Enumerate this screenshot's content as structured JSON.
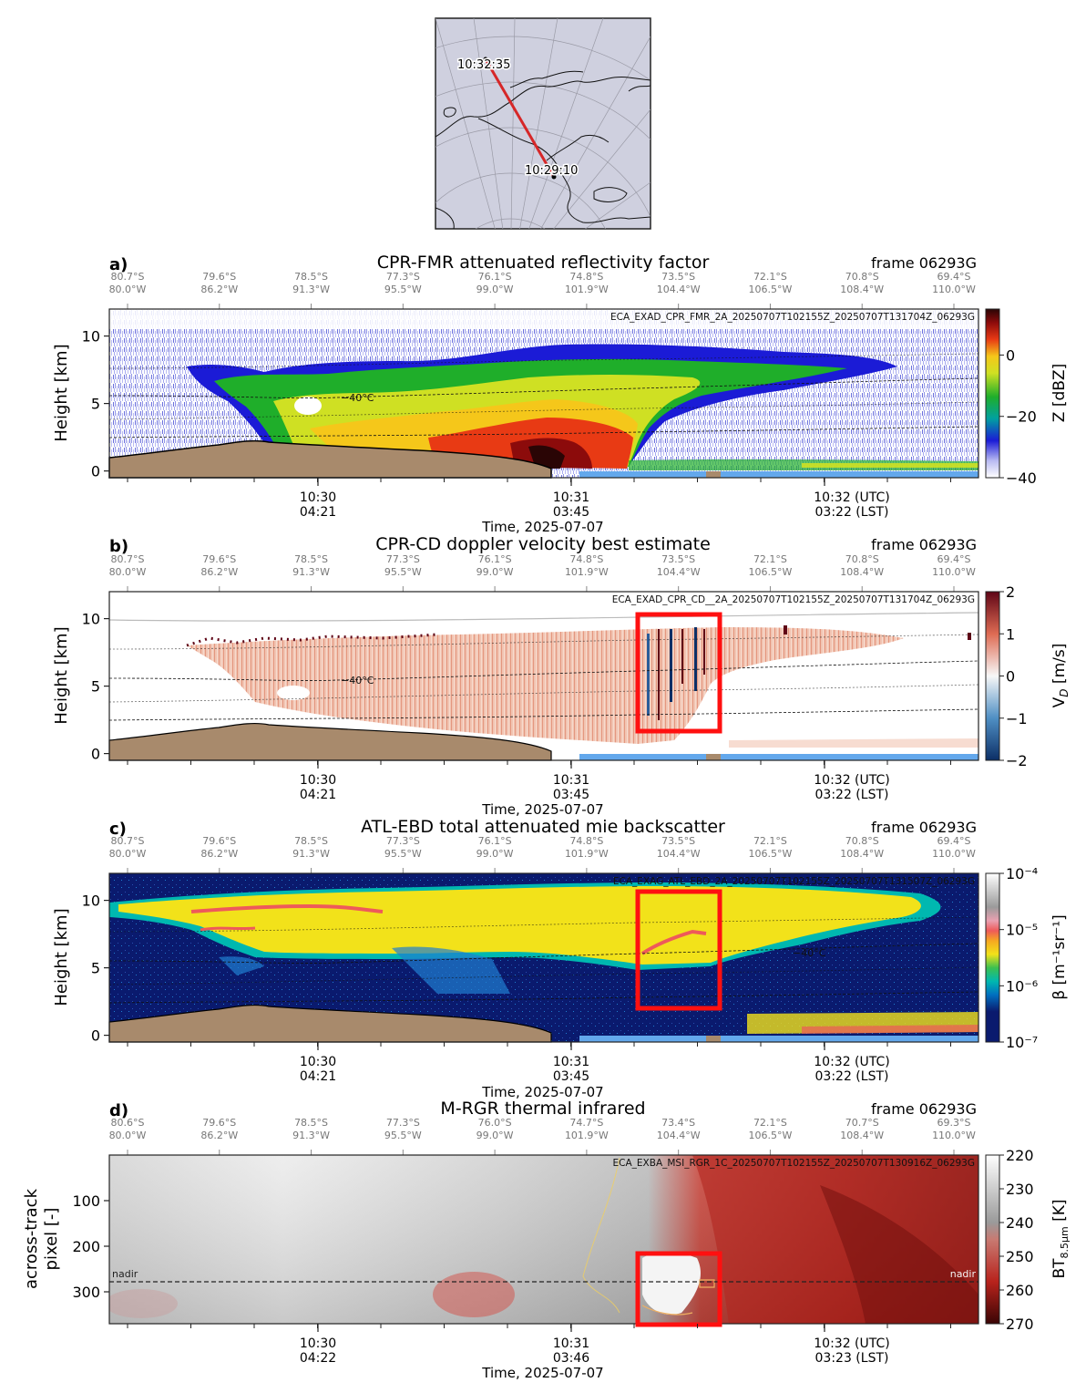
{
  "map": {
    "start_time": "10:29:10",
    "end_time": "10:32:35",
    "track_color": "#d62728"
  },
  "time_axis_label": "Time, 2025-07-07",
  "time_axis_label_d": "Time, 2025-07-07",
  "utc_ticks": [
    "10:30",
    "10:31",
    "10:32 (UTC)"
  ],
  "lst_ticks": [
    "04:21",
    "03:45",
    "03:22 (LST)"
  ],
  "lst_ticks_d": [
    "04:22",
    "03:46",
    "03:23 (LST)"
  ],
  "coord_ticks": [
    {
      "lat": "80.7°S",
      "lon": "80.0°W"
    },
    {
      "lat": "79.6°S",
      "lon": "86.2°W"
    },
    {
      "lat": "78.5°S",
      "lon": "91.3°W"
    },
    {
      "lat": "77.3°S",
      "lon": "95.5°W"
    },
    {
      "lat": "76.1°S",
      "lon": "99.0°W"
    },
    {
      "lat": "74.8°S",
      "lon": "101.9°W"
    },
    {
      "lat": "73.5°S",
      "lon": "104.4°W"
    },
    {
      "lat": "72.1°S",
      "lon": "106.5°W"
    },
    {
      "lat": "70.8°S",
      "lon": "108.4°W"
    },
    {
      "lat": "69.4°S",
      "lon": "110.0°W"
    }
  ],
  "coord_ticks_d": [
    {
      "lat": "80.6°S",
      "lon": "80.0°W"
    },
    {
      "lat": "79.6°S",
      "lon": "86.2°W"
    },
    {
      "lat": "78.5°S",
      "lon": "91.3°W"
    },
    {
      "lat": "77.3°S",
      "lon": "95.5°W"
    },
    {
      "lat": "76.0°S",
      "lon": "99.0°W"
    },
    {
      "lat": "74.7°S",
      "lon": "101.9°W"
    },
    {
      "lat": "73.4°S",
      "lon": "104.4°W"
    },
    {
      "lat": "72.1°S",
      "lon": "106.5°W"
    },
    {
      "lat": "70.7°S",
      "lon": "108.4°W"
    },
    {
      "lat": "69.3°S",
      "lon": "110.0°W"
    }
  ],
  "chart_data": [
    {
      "panel": "a)",
      "type": "heatmap",
      "title": "CPR-FMR attenuated reflectivity factor",
      "frame": "frame 06293G",
      "product": "ECA_EXAD_CPR_FMR_2A_20250707T102155Z_20250707T131704Z_06293G",
      "ylabel": "Height [km]",
      "yticks": [
        "0",
        "5",
        "10"
      ],
      "ylim": [
        -0.5,
        12
      ],
      "cbar_label": "Z [dBZ]",
      "cbar_ticks": [
        "0",
        "−20",
        "−40"
      ],
      "cbar_range": [
        -40,
        15
      ],
      "isotherm_label": "−40°C"
    },
    {
      "panel": "b)",
      "type": "heatmap",
      "title": "CPR-CD doppler velocity best estimate",
      "frame": "frame 06293G",
      "product": "ECA_EXAD_CPR_CD__2A_20250707T102155Z_20250707T131704Z_06293G",
      "ylabel": "Height [km]",
      "yticks": [
        "0",
        "5",
        "10"
      ],
      "ylim": [
        -0.5,
        12
      ],
      "cbar_label": "V_D [m/s]",
      "cbar_ticks": [
        "2",
        "1",
        "0",
        "−1",
        "−2"
      ],
      "cbar_range": [
        -2,
        2
      ],
      "isotherm_label": "−40°C"
    },
    {
      "panel": "c)",
      "type": "heatmap",
      "title": "ATL-EBD total attenuated mie backscatter",
      "frame": "frame 06293G",
      "product": "ECA_EXAG_ATL_EBD_2A_20250707T102155Z_20250707T131507Z_06293G",
      "ylabel": "Height [km]",
      "yticks": [
        "0",
        "5",
        "10"
      ],
      "ylim": [
        -0.5,
        12
      ],
      "cbar_label": "β [m⁻¹sr⁻¹]",
      "cbar_ticks": [
        "10⁻⁴",
        "10⁻⁵",
        "10⁻⁶",
        "10⁻⁷"
      ],
      "cbar_range": [
        1e-07,
        0.0001
      ],
      "isotherm_label": "−40°C"
    },
    {
      "panel": "d)",
      "type": "heatmap",
      "title": "M-RGR thermal infrared",
      "frame": "frame 06293G",
      "product": "ECA_EXBA_MSI_RGR_1C_20250707T102155Z_20250707T130916Z_06293G",
      "ylabel": "across-track",
      "ylabel2": "pixel [-]",
      "yticks": [
        "100",
        "200",
        "300"
      ],
      "ylim": [
        370,
        0
      ],
      "cbar_label": "BT8.5μm [K]",
      "cbar_ticks": [
        "220",
        "230",
        "240",
        "250",
        "260",
        "270"
      ],
      "cbar_range": [
        220,
        270
      ],
      "nadir_label": "nadir",
      "nadir_pixel": 282
    }
  ]
}
